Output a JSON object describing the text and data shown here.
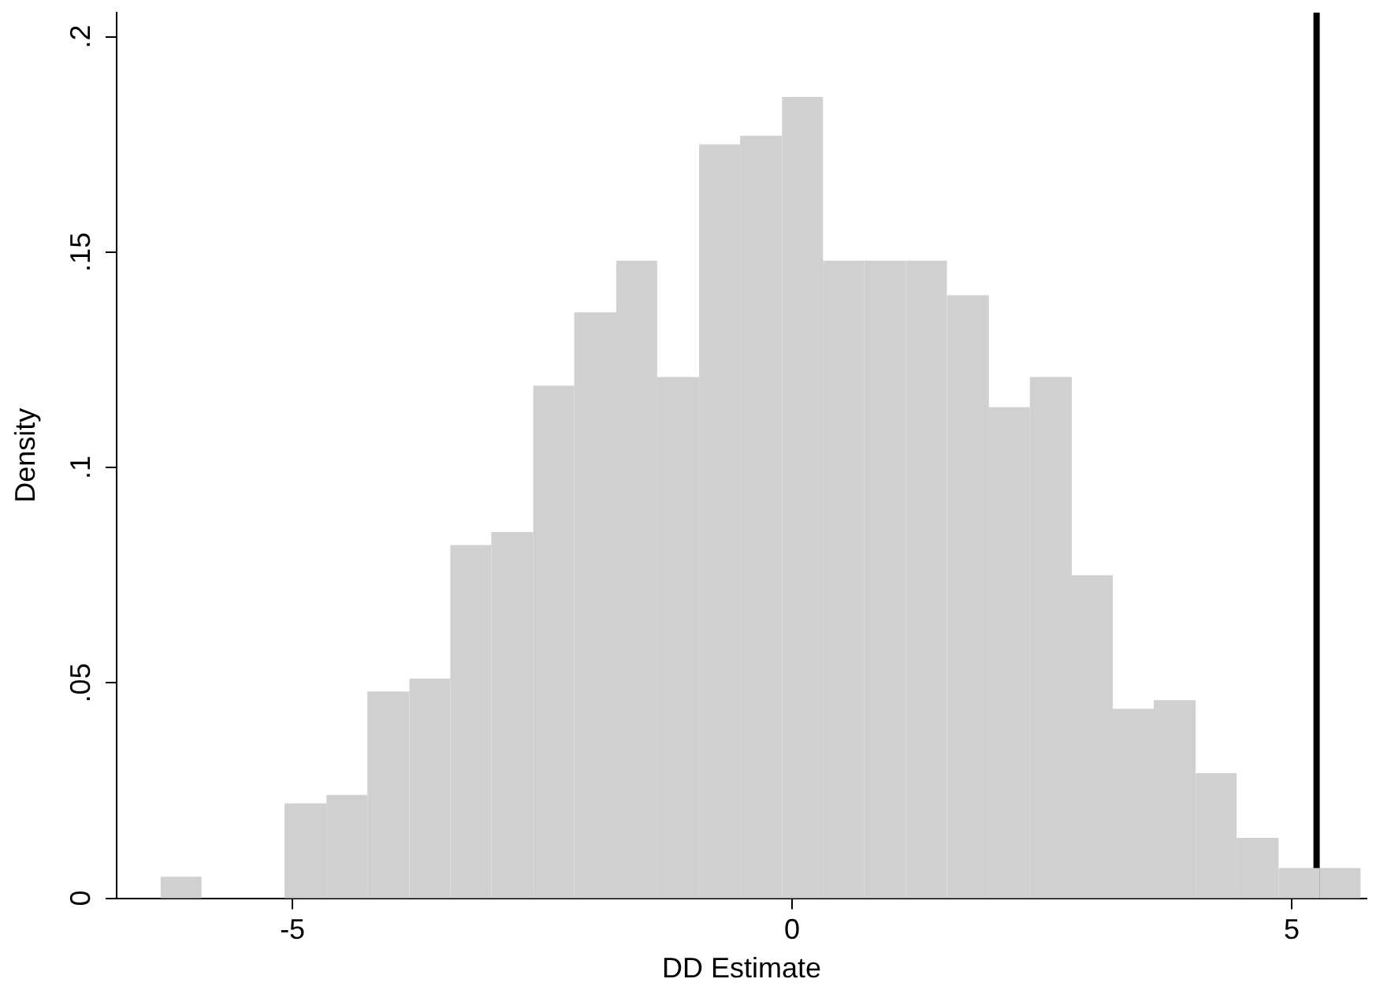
{
  "chart_data": {
    "type": "histogram",
    "xlabel": "DD Estimate",
    "ylabel": "Density",
    "color": "#d0d0d0",
    "bins": [
      -6.32,
      -5.91,
      -5.08,
      -4.66,
      -4.25,
      -3.83,
      -3.42,
      -3.01,
      -2.59,
      -2.18,
      -1.76,
      -1.35,
      -0.93,
      -0.52,
      -0.1,
      0.31,
      0.72,
      1.14,
      1.55,
      1.97,
      2.38,
      2.8,
      3.21,
      3.62,
      4.04,
      4.45,
      4.87,
      5.28,
      5.69
    ],
    "values": [
      0.005,
      0,
      0.022,
      0.024,
      0.048,
      0.051,
      0.082,
      0.085,
      0.119,
      0.136,
      0.148,
      0.121,
      0.175,
      0.177,
      0.186,
      0.148,
      0.148,
      0.148,
      0.14,
      0.114,
      0.121,
      0.075,
      0.044,
      0.046,
      0.029,
      0.014,
      0.007,
      0.007
    ],
    "xlim": [
      -6.76,
      5.75
    ],
    "xticks": [
      -5,
      0,
      5
    ],
    "ylim": [
      0,
      0.2056
    ],
    "yticks": [
      0,
      {
        "value": 0.05,
        "label": ".05"
      },
      {
        "value": 0.1,
        "label": ".1"
      },
      {
        "value": 0.15,
        "label": ".15"
      },
      {
        "value": 0.2,
        "label": ".2"
      }
    ],
    "grid": false,
    "ref_lines": [
      {
        "axis": "x",
        "value": 5.25,
        "color": "#000000"
      }
    ]
  }
}
